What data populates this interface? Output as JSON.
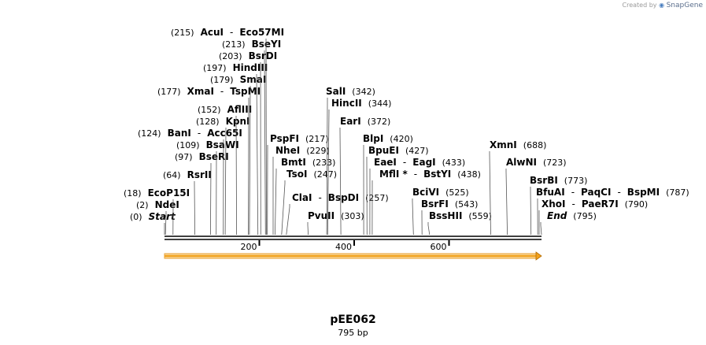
{
  "credit": {
    "prefix": "Created by",
    "brand": "SnapGene"
  },
  "plasmid": {
    "name": "pEE062",
    "length_label": "795 bp",
    "length": 795
  },
  "axis": {
    "ticks": [
      200,
      400,
      600
    ]
  },
  "feature": {
    "name": "orf-arrow",
    "start": 0,
    "end": 795,
    "color": "#f2a11b"
  },
  "sites": [
    {
      "names": [
        "Start"
      ],
      "pos_text": "(0)",
      "bp": 0,
      "pos_side": "left",
      "italic": true
    },
    {
      "names": [
        "NdeI"
      ],
      "pos_text": "(2)",
      "bp": 2,
      "pos_side": "left"
    },
    {
      "names": [
        "EcoP15I"
      ],
      "pos_text": "(18)",
      "bp": 18,
      "pos_side": "left"
    },
    {
      "names": [
        "RsrII"
      ],
      "pos_text": "(64)",
      "bp": 64,
      "pos_side": "left"
    },
    {
      "names": [
        "BseRI"
      ],
      "pos_text": "(97)",
      "bp": 97,
      "pos_side": "left"
    },
    {
      "names": [
        "BsaWI"
      ],
      "pos_text": "(109)",
      "bp": 109,
      "pos_side": "left"
    },
    {
      "names": [
        "BanI",
        "Acc65I"
      ],
      "pos_text": "(124)",
      "bp": 124,
      "pos_side": "left"
    },
    {
      "names": [
        "KpnI"
      ],
      "pos_text": "(128)",
      "bp": 128,
      "pos_side": "left"
    },
    {
      "names": [
        "AflIII"
      ],
      "pos_text": "(152)",
      "bp": 152,
      "pos_side": "left"
    },
    {
      "names": [
        "XmaI",
        "TspMI"
      ],
      "pos_text": "(177)",
      "bp": 177,
      "pos_side": "left"
    },
    {
      "names": [
        "SmaI"
      ],
      "pos_text": "(179)",
      "bp": 179,
      "pos_side": "left"
    },
    {
      "names": [
        "HindIII"
      ],
      "pos_text": "(197)",
      "bp": 197,
      "pos_side": "left"
    },
    {
      "names": [
        "BsrDI"
      ],
      "pos_text": "(203)",
      "bp": 203,
      "pos_side": "left"
    },
    {
      "names": [
        "BseYI"
      ],
      "pos_text": "(213)",
      "bp": 213,
      "pos_side": "left"
    },
    {
      "names": [
        "AcuI",
        "Eco57MI"
      ],
      "pos_text": "(215)",
      "bp": 215,
      "pos_side": "left"
    },
    {
      "names": [
        "PspFI"
      ],
      "pos_text": "(217)",
      "bp": 217,
      "pos_side": "right"
    },
    {
      "names": [
        "NheI"
      ],
      "pos_text": "(229)",
      "bp": 229,
      "pos_side": "right"
    },
    {
      "names": [
        "BmtI"
      ],
      "pos_text": "(233)",
      "bp": 233,
      "pos_side": "right"
    },
    {
      "names": [
        "TsoI"
      ],
      "pos_text": "(247)",
      "bp": 247,
      "pos_side": "right"
    },
    {
      "names": [
        "ClaI",
        "BspDI"
      ],
      "pos_text": "(257)",
      "bp": 257,
      "pos_side": "right"
    },
    {
      "names": [
        "PvuII"
      ],
      "pos_text": "(303)",
      "bp": 303,
      "pos_side": "right"
    },
    {
      "names": [
        "SalI"
      ],
      "pos_text": "(342)",
      "bp": 342,
      "pos_side": "right"
    },
    {
      "names": [
        "HincII"
      ],
      "pos_text": "(344)",
      "bp": 344,
      "pos_side": "right"
    },
    {
      "names": [
        "EarI"
      ],
      "pos_text": "(372)",
      "bp": 372,
      "pos_side": "right"
    },
    {
      "names": [
        "BlpI"
      ],
      "pos_text": "(420)",
      "bp": 420,
      "pos_side": "right"
    },
    {
      "names": [
        "BpuEI"
      ],
      "pos_text": "(427)",
      "bp": 427,
      "pos_side": "right"
    },
    {
      "names": [
        "EaeI",
        "EagI"
      ],
      "pos_text": "(433)",
      "bp": 433,
      "pos_side": "right"
    },
    {
      "names": [
        "MflI *",
        "BstYI"
      ],
      "pos_text": "(438)",
      "bp": 438,
      "pos_side": "right"
    },
    {
      "names": [
        "BciVI"
      ],
      "pos_text": "(525)",
      "bp": 525,
      "pos_side": "right"
    },
    {
      "names": [
        "BsrFI"
      ],
      "pos_text": "(543)",
      "bp": 543,
      "pos_side": "right"
    },
    {
      "names": [
        "BssHII"
      ],
      "pos_text": "(559)",
      "bp": 559,
      "pos_side": "right"
    },
    {
      "names": [
        "XmnI"
      ],
      "pos_text": "(688)",
      "bp": 688,
      "pos_side": "right"
    },
    {
      "names": [
        "AlwNI"
      ],
      "pos_text": "(723)",
      "bp": 723,
      "pos_side": "right"
    },
    {
      "names": [
        "BsrBI"
      ],
      "pos_text": "(773)",
      "bp": 773,
      "pos_side": "right"
    },
    {
      "names": [
        "BfuAI",
        "PaqCI",
        "BspMI"
      ],
      "pos_text": "(787)",
      "bp": 787,
      "pos_side": "right"
    },
    {
      "names": [
        "XhoI",
        "PaeR7I"
      ],
      "pos_text": "(790)",
      "bp": 790,
      "pos_side": "right"
    },
    {
      "names": [
        "End"
      ],
      "pos_text": "(795)",
      "bp": 795,
      "pos_side": "right",
      "italic": true
    }
  ]
}
